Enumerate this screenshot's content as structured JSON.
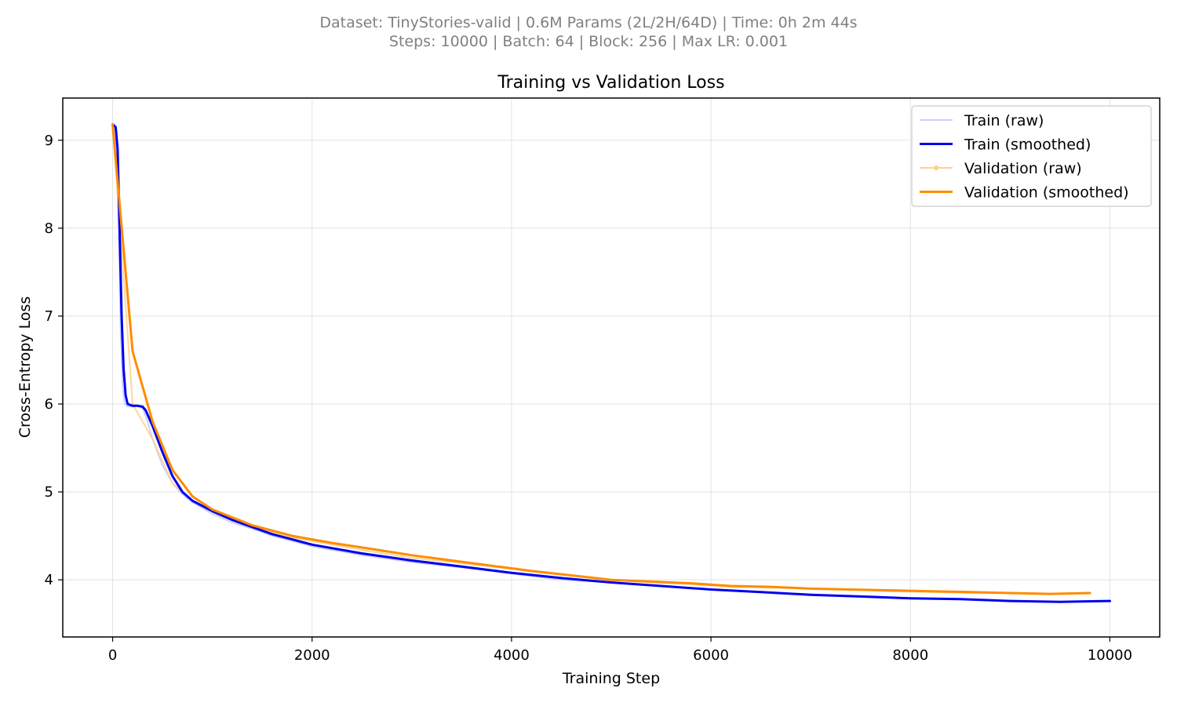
{
  "header": {
    "line1": "Dataset: TinyStories-valid | 0.6M Params (2L/2H/64D) | Time: 0h 2m 44s",
    "line2": "Steps: 10000 | Batch: 64 | Block: 256 | Max LR: 0.001"
  },
  "chart_data": {
    "type": "line",
    "title": "Training vs Validation Loss",
    "xlabel": "Training Step",
    "ylabel": "Cross-Entropy Loss",
    "xlim": [
      -500,
      10500
    ],
    "ylim": [
      3.35,
      9.48
    ],
    "xticks": [
      0,
      2000,
      4000,
      6000,
      8000,
      10000
    ],
    "yticks": [
      4,
      5,
      6,
      7,
      8,
      9
    ],
    "grid": true,
    "legend_position": "top-right",
    "colors": {
      "train_raw": "#c8c8ff",
      "train_smoothed": "#0000ee",
      "val_raw": "#ffd28c",
      "val_smoothed": "#ff8c00"
    },
    "series": [
      {
        "name": "Train (raw)",
        "x": [
          0,
          30,
          60,
          80,
          100,
          120,
          150,
          200,
          250,
          300,
          350,
          400,
          450,
          500,
          600,
          700,
          800,
          1000,
          1200,
          1400,
          1600,
          1800,
          2000,
          2500,
          3000,
          3500,
          4000,
          4500,
          5000,
          5500,
          6000,
          6500,
          7000,
          7500,
          8000,
          8500,
          9000,
          9500,
          10000
        ],
        "y": [
          9.18,
          9.1,
          8.0,
          6.8,
          6.2,
          6.0,
          5.97,
          5.97,
          5.98,
          5.95,
          5.8,
          5.6,
          5.45,
          5.3,
          5.1,
          4.97,
          4.88,
          4.75,
          4.65,
          4.58,
          4.5,
          4.44,
          4.38,
          4.28,
          4.2,
          4.14,
          4.07,
          4.0,
          3.97,
          3.93,
          3.89,
          3.86,
          3.83,
          3.81,
          3.79,
          3.78,
          3.76,
          3.75,
          3.76
        ]
      },
      {
        "name": "Train (smoothed)",
        "x": [
          0,
          30,
          50,
          70,
          90,
          110,
          130,
          150,
          200,
          250,
          300,
          330,
          400,
          500,
          600,
          700,
          800,
          1000,
          1200,
          1400,
          1600,
          1800,
          2000,
          2500,
          3000,
          3500,
          4000,
          4500,
          5000,
          5500,
          6000,
          6500,
          7000,
          7500,
          8000,
          8500,
          9000,
          9500,
          10000
        ],
        "y": [
          9.18,
          9.15,
          8.9,
          8.0,
          7.0,
          6.4,
          6.1,
          6.0,
          5.98,
          5.98,
          5.97,
          5.93,
          5.75,
          5.45,
          5.18,
          5.0,
          4.9,
          4.78,
          4.68,
          4.6,
          4.52,
          4.46,
          4.4,
          4.3,
          4.22,
          4.15,
          4.08,
          4.02,
          3.97,
          3.93,
          3.89,
          3.86,
          3.83,
          3.81,
          3.79,
          3.78,
          3.76,
          3.75,
          3.76
        ]
      },
      {
        "name": "Validation (raw)",
        "x": [
          0,
          200,
          400,
          600,
          800,
          1000,
          1400,
          1800,
          2200,
          2600,
          3000,
          3400,
          3800,
          4200,
          4600,
          5000,
          5400,
          5800,
          6200,
          6600,
          7000,
          7400,
          7800,
          8200,
          8600,
          9000,
          9400,
          9800
        ],
        "y": [
          9.18,
          6.0,
          5.6,
          5.1,
          4.9,
          4.8,
          4.6,
          4.48,
          4.4,
          4.32,
          4.25,
          4.2,
          4.15,
          4.1,
          4.05,
          4.0,
          3.97,
          3.95,
          3.92,
          3.91,
          3.9,
          3.89,
          3.87,
          3.86,
          3.85,
          3.85,
          3.84,
          3.85
        ]
      },
      {
        "name": "Validation (smoothed)",
        "x": [
          0,
          200,
          300,
          400,
          600,
          800,
          1000,
          1400,
          1800,
          2200,
          2600,
          3000,
          3400,
          3800,
          4200,
          4600,
          5000,
          5400,
          5800,
          6200,
          6600,
          7000,
          7400,
          7800,
          8200,
          8600,
          9000,
          9400,
          9800
        ],
        "y": [
          9.18,
          6.6,
          6.2,
          5.8,
          5.25,
          4.95,
          4.8,
          4.62,
          4.5,
          4.42,
          4.35,
          4.28,
          4.22,
          4.16,
          4.1,
          4.05,
          4.0,
          3.98,
          3.96,
          3.93,
          3.92,
          3.9,
          3.89,
          3.88,
          3.87,
          3.86,
          3.85,
          3.84,
          3.85
        ]
      }
    ]
  }
}
